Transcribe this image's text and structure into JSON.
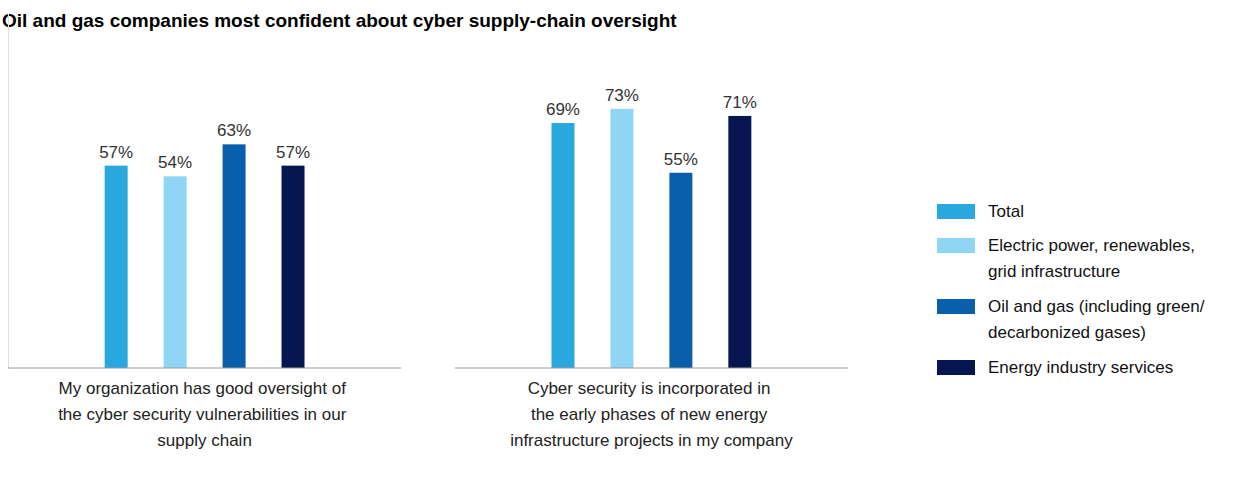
{
  "chart_data": {
    "type": "bar",
    "title": "Oil and gas companies most confident about cyber supply-chain oversight",
    "categories": [
      "My organization has good oversight of\nthe cyber security vulnerabilities in our\nsupply chain",
      "Cyber security is incorporated in\nthe early phases of new energy\ninfrastructure projects in my company"
    ],
    "series": [
      {
        "name": "Total",
        "color": "#29a8e0",
        "values": [
          57,
          69
        ],
        "value_labels": [
          "57%",
          "69%"
        ]
      },
      {
        "name": "Electric power, renewables,\ngrid infrastructure",
        "color": "#8fd6f5",
        "values": [
          54,
          73
        ],
        "value_labels": [
          "54%",
          "73%"
        ]
      },
      {
        "name": "Oil and gas (including green/\ndecarbonized gases)",
        "color": "#0a5fad",
        "values": [
          63,
          55
        ],
        "value_labels": [
          "63%",
          "55%"
        ]
      },
      {
        "name": "Energy industry services",
        "color": "#051650",
        "values": [
          57,
          71
        ],
        "value_labels": [
          "57%",
          "71%"
        ]
      }
    ],
    "ylim": [
      0,
      100
    ],
    "data_labels": true,
    "tick_labels": "x",
    "legend": "right",
    "grid": false
  }
}
